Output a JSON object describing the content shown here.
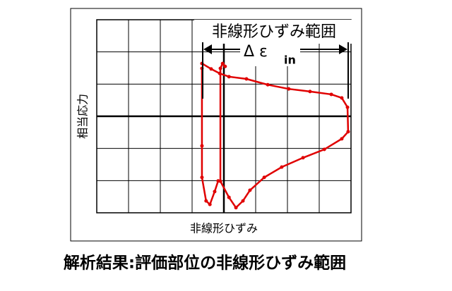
{
  "chart_data": {
    "type": "line",
    "annotation": "非線形ひずみ範囲",
    "range_label": "Δ ε",
    "range_label_sub": "in",
    "xlabel": "非線形ひずみ",
    "ylabel": "相当応力",
    "caption": "解析結果:評価部位の非線形ひずみ範囲",
    "color": "#e00000",
    "xlim": [
      -4,
      4
    ],
    "ylim": [
      -3,
      3
    ],
    "xticks": [
      -4,
      -3,
      -2,
      -1,
      0,
      1,
      2,
      3,
      4
    ],
    "yticks": [
      -3,
      -2,
      -1,
      0,
      1,
      2,
      3
    ],
    "grid": true,
    "x": [
      -0.69,
      -0.4,
      -0.13,
      0.16,
      0.71,
      1.38,
      2.04,
      2.71,
      3.38,
      3.71,
      3.89,
      3.91,
      3.71,
      3.16,
      2.49,
      1.82,
      1.27,
      0.82,
      0.6,
      0.38,
      0.16,
      -0.11,
      -0.11,
      -0.04,
      0.04,
      null,
      -0.69,
      -0.69,
      -0.69,
      -0.56,
      -0.44,
      -0.29,
      -0.18
    ],
    "values": [
      1.64,
      1.47,
      1.33,
      1.23,
      1.16,
      0.98,
      0.85,
      0.77,
      0.68,
      0.57,
      0.28,
      -0.48,
      -0.7,
      -1.03,
      -1.29,
      -1.58,
      -1.9,
      -2.3,
      -2.63,
      -2.84,
      -2.52,
      -2.02,
      1.49,
      1.64,
      1.55,
      null,
      1.49,
      -0.92,
      -1.9,
      -2.63,
      -2.74,
      -2.34,
      -2.01
    ]
  }
}
